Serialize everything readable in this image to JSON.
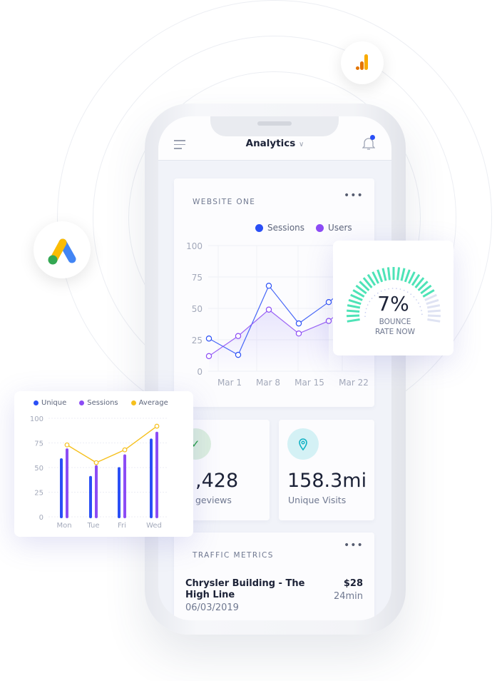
{
  "header": {
    "title": "Analytics",
    "menu_icon": "hamburger-icon",
    "chevron_icon": "chevron-down-icon",
    "bell_icon": "bell-icon"
  },
  "colors": {
    "sessions": "#2a4ff6",
    "users": "#8c4cf5",
    "average": "#f6c01c",
    "gauge_on": "#4ee3b7",
    "gauge_off": "#dfe3f3",
    "check": "#1a9a3a",
    "pin": "#0fb1c4"
  },
  "website_card": {
    "title": "WEBSITE ONE",
    "more": "•••"
  },
  "chart_data": [
    {
      "type": "line",
      "legend": [
        "Sessions",
        "Users"
      ],
      "y_ticks": [
        "100",
        "75",
        "50",
        "25",
        "0"
      ],
      "x_ticks": [
        "Mar 1",
        "Mar 8",
        "Mar 15",
        "Mar 22"
      ],
      "ylim": [
        0,
        100
      ],
      "series": [
        {
          "name": "Sessions",
          "values": [
            26,
            13,
            68,
            38,
            55
          ]
        },
        {
          "name": "Users",
          "values": [
            12,
            28,
            49,
            30,
            40
          ]
        }
      ]
    },
    {
      "type": "bar",
      "categories": [
        "Mon",
        "Tue",
        "Fri",
        "Wed"
      ],
      "y_ticks": [
        "100",
        "75",
        "50",
        "25",
        "0"
      ],
      "ylim": [
        0,
        100
      ],
      "legend": [
        "Unique",
        "Sessions",
        "Average"
      ],
      "series": [
        {
          "name": "Unique",
          "values": [
            58,
            40,
            49,
            78
          ]
        },
        {
          "name": "Sessions",
          "values": [
            68,
            51,
            62,
            85
          ]
        },
        {
          "name": "Average",
          "values": [
            73,
            55,
            68,
            92
          ]
        }
      ]
    }
  ],
  "gauge": {
    "value": "7%",
    "label1": "BOUNCE",
    "label2": "RATE NOW"
  },
  "stats": [
    {
      "value": ",428",
      "label": "geviews",
      "icon": "check-icon"
    },
    {
      "value": "158.3mi",
      "label": "Unique Visits",
      "icon": "location-pin-icon"
    }
  ],
  "traffic": {
    "title": "TRAFFIC METRICS",
    "more": "•••",
    "route": "Chrysler Building - The High Line",
    "date": "06/03/2019",
    "price": "$28",
    "duration": "24min"
  },
  "badges": {
    "ads": "google-ads-icon",
    "analytics": "google-analytics-icon"
  }
}
